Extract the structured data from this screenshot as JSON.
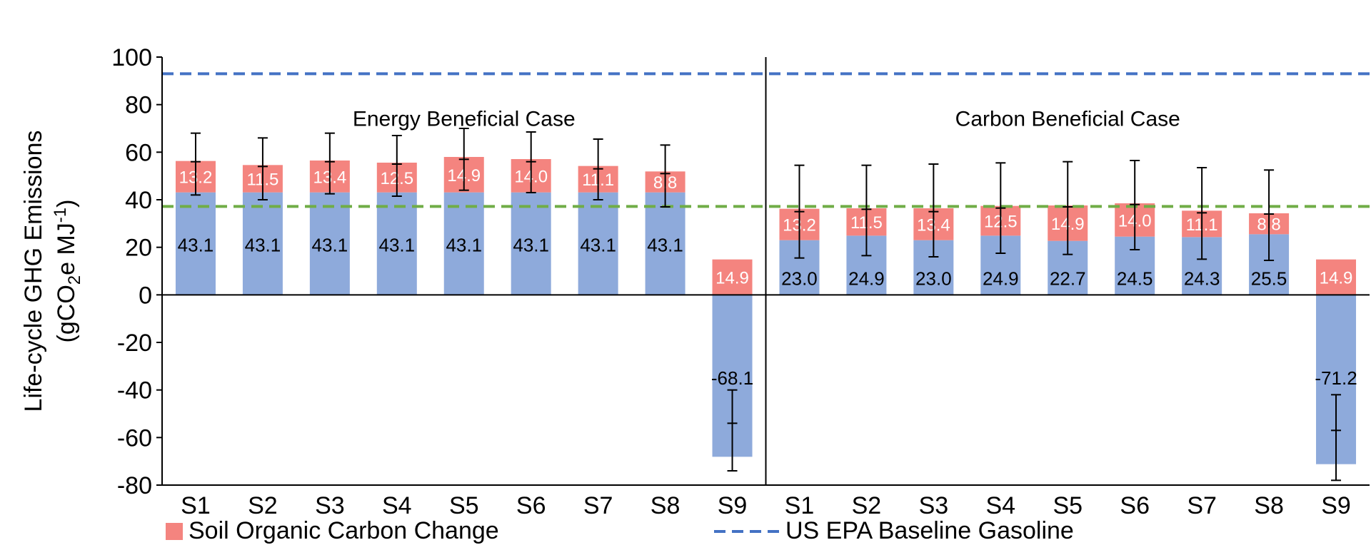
{
  "chart_data": {
    "type": "bar",
    "stacked": true,
    "categories": [
      "S1",
      "S2",
      "S3",
      "S4",
      "S5",
      "S6",
      "S7",
      "S8",
      "S9",
      "S1",
      "S2",
      "S3",
      "S4",
      "S5",
      "S6",
      "S7",
      "S8",
      "S9"
    ],
    "groups": [
      {
        "label": "Energy Beneficial Case",
        "range": [
          0,
          8
        ]
      },
      {
        "label": "Carbon Beneficial Case",
        "range": [
          9,
          17
        ]
      }
    ],
    "series": [
      {
        "key": "base",
        "color": "#8eaadb",
        "values": [
          43.1,
          43.1,
          43.1,
          43.1,
          43.1,
          43.1,
          43.1,
          43.1,
          -68.1,
          23.0,
          24.9,
          23.0,
          24.9,
          22.7,
          24.5,
          24.3,
          25.5,
          -71.2
        ],
        "labels": [
          "43.1",
          "43.1",
          "43.1",
          "43.1",
          "43.1",
          "43.1",
          "43.1",
          "43.1",
          "-68.1",
          "23.0",
          "24.9",
          "23.0",
          "24.9",
          "22.7",
          "24.5",
          "24.3",
          "25.5",
          "-71.2"
        ]
      },
      {
        "key": "soc",
        "name": "Soil Organic Carbon Change",
        "color": "#f4847f",
        "values": [
          13.2,
          11.5,
          13.4,
          12.5,
          14.9,
          14.0,
          11.1,
          8.8,
          14.9,
          13.2,
          11.5,
          13.4,
          12.5,
          14.9,
          14.0,
          11.1,
          8.8,
          14.9
        ],
        "labels": [
          "13.2",
          "11.5",
          "13.4",
          "12.5",
          "14.9",
          "14.0",
          "11.1",
          "8.8",
          "14.9",
          "13.2",
          "11.5",
          "13.4",
          "12.5",
          "14.9",
          "14.0",
          "11.1",
          "8.8",
          "14.9"
        ]
      }
    ],
    "error_bars": [
      {
        "center": 56,
        "low": 42,
        "high": 68
      },
      {
        "center": 54,
        "low": 40,
        "high": 66
      },
      {
        "center": 56,
        "low": 42.5,
        "high": 68
      },
      {
        "center": 55,
        "low": 41.5,
        "high": 67
      },
      {
        "center": 57,
        "low": 44,
        "high": 70
      },
      {
        "center": 56,
        "low": 43,
        "high": 68.5
      },
      {
        "center": 53,
        "low": 40,
        "high": 65.5
      },
      {
        "center": 51,
        "low": 37,
        "high": 63
      },
      {
        "center": -54,
        "low": -74,
        "high": -40
      },
      {
        "center": 35,
        "low": 15.5,
        "high": 54.5
      },
      {
        "center": 36,
        "low": 16.5,
        "high": 54.5
      },
      {
        "center": 35,
        "low": 16,
        "high": 55
      },
      {
        "center": 36.5,
        "low": 17.5,
        "high": 55.5
      },
      {
        "center": 37,
        "low": 17,
        "high": 56
      },
      {
        "center": 38,
        "low": 19,
        "high": 56.5
      },
      {
        "center": 34.5,
        "low": 15,
        "high": 53.5
      },
      {
        "center": 34,
        "low": 14.5,
        "high": 52.5
      },
      {
        "center": -57,
        "low": -78,
        "high": -42
      }
    ],
    "reference_lines": [
      {
        "name": "US EPA Baseline Gasoline",
        "value": 93,
        "color": "#4472c4",
        "style": "dashed"
      },
      {
        "value": 37.2,
        "color": "#70ad47",
        "style": "dashed"
      }
    ],
    "ylabel_line1": "Life-cycle GHG Emissions",
    "ylabel_line2_parts": [
      "(gCO",
      "2",
      "e MJ",
      "-1",
      ")"
    ],
    "ylim": [
      -80,
      100
    ],
    "yticks": [
      -80,
      -60,
      -40,
      -20,
      0,
      20,
      40,
      60,
      80,
      100
    ],
    "ytick_labels": [
      "-80",
      "-60",
      "-40",
      "-20",
      "0",
      "20",
      "40",
      "60",
      "80",
      "100"
    ],
    "grid": false,
    "legend_position": "bottom",
    "legend": [
      {
        "label": "Soil Organic Carbon Change",
        "color": "#f4847f",
        "kind": "box"
      },
      {
        "label": "US EPA Baseline Gasoline",
        "color": "#4472c4",
        "kind": "dash"
      }
    ]
  }
}
